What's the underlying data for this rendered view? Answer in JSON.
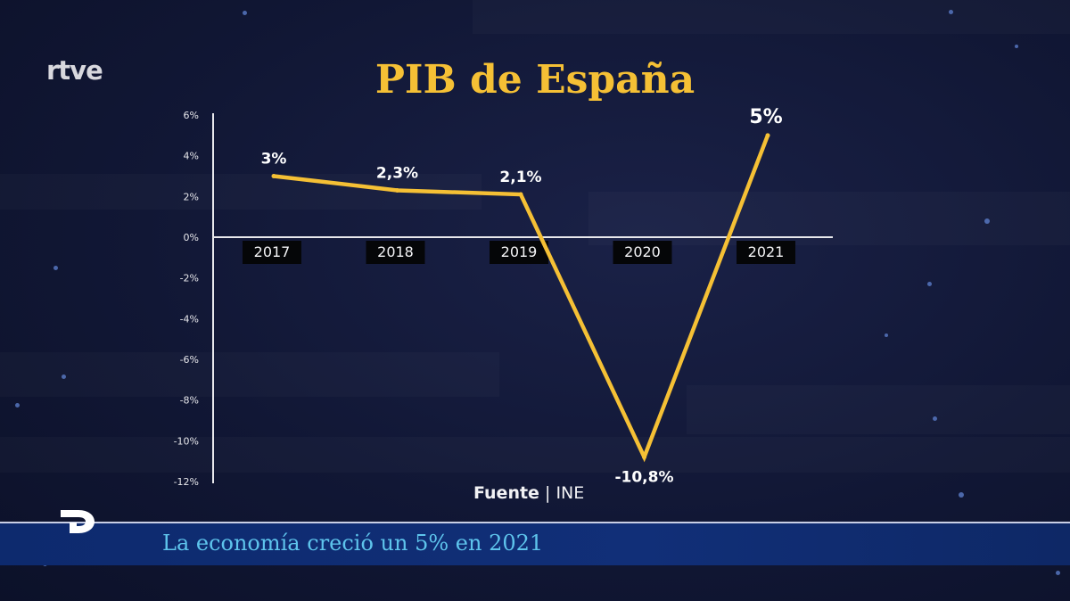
{
  "channel": {
    "logo_text": "rtve"
  },
  "source_line": {
    "label": "Fuente",
    "separator": "|",
    "source": "INE"
  },
  "ticker": {
    "text": "La economía creció un 5% en 2021"
  },
  "colors": {
    "line": "#f5c035",
    "title": "#f5c035",
    "background": "#121836",
    "ticker_bg": "#0f2c72",
    "ticker_text": "#5ec4ec",
    "axis": "#e8e8ec"
  },
  "chart_data": {
    "type": "line",
    "title": "PIB de España",
    "categories": [
      "2017",
      "2018",
      "2019",
      "2020",
      "2021"
    ],
    "series": [
      {
        "values": [
          3.0,
          2.3,
          2.1,
          -10.8,
          5.0
        ]
      }
    ],
    "data_labels": [
      "3%",
      "2,3%",
      "2,1%",
      "-10,8%",
      "5%"
    ],
    "yticks": [
      6,
      4,
      2,
      0,
      -2,
      -4,
      -6,
      -8,
      -10,
      -12
    ],
    "ytick_labels": [
      "6%",
      "4%",
      "2%",
      "0%",
      "-2%",
      "-4%",
      "-6%",
      "-8%",
      "-10%",
      "-12%"
    ],
    "ylim": [
      -12,
      6
    ],
    "grid": false,
    "legend": "none"
  }
}
